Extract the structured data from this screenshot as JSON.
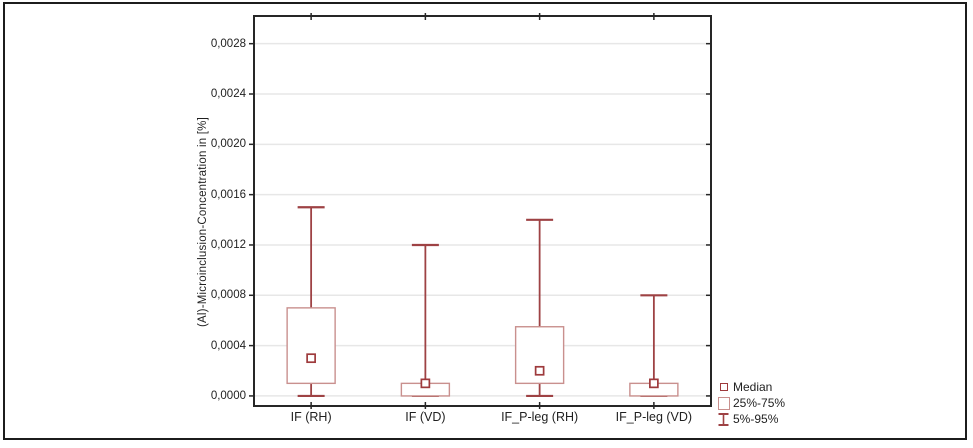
{
  "figure": {
    "background": "#ffffff",
    "frame_border_color": "#1c1c1c"
  },
  "chart_data": {
    "type": "boxplot",
    "title": "",
    "xlabel": "",
    "ylabel": "(Al)-Microinclusion-Concentration in [%]",
    "categories": [
      "IF (RH)",
      "IF (VD)",
      "IF_P-leg (RH)",
      "IF_P-leg (VD)"
    ],
    "series": [
      {
        "category": "IF (RH)",
        "p5": 0.0,
        "q1": 0.0001,
        "median": 0.0003,
        "q3": 0.0007,
        "p95": 0.0015
      },
      {
        "category": "IF (VD)",
        "p5": 0.0,
        "q1": 0.0,
        "median": 0.0001,
        "q3": 0.0001,
        "p95": 0.0012
      },
      {
        "category": "IF_P-leg (RH)",
        "p5": 0.0,
        "q1": 0.0001,
        "median": 0.0002,
        "q3": 0.00055,
        "p95": 0.0014
      },
      {
        "category": "IF_P-leg (VD)",
        "p5": 0.0,
        "q1": 0.0,
        "median": 0.0001,
        "q3": 0.0001,
        "p95": 0.0008
      }
    ],
    "yticks": [
      0.0,
      0.0004,
      0.0008,
      0.0012,
      0.0016,
      0.002,
      0.0024,
      0.0028
    ],
    "ytick_labels": [
      "0,0000",
      "0,0004",
      "0,0008",
      "0,0012",
      "0,0016",
      "0,0020",
      "0,0024",
      "0,0028"
    ],
    "ylim": [
      -8e-05,
      0.00302
    ],
    "grid": "horizontal",
    "legend_position": "bottom-right",
    "legend": [
      {
        "label": "Median",
        "marker": "median-square"
      },
      {
        "label": "25%-75%",
        "marker": "iqr-box"
      },
      {
        "label": "5%-95%",
        "marker": "whisker-ibeam"
      }
    ],
    "colors": {
      "box_outline": "#c9908e",
      "whisker": "#9e4244",
      "median_marker": "#9e3a3c",
      "gridline": "#e7e7e7",
      "plot_border": "#262626",
      "text": "#1f1f1f",
      "fill": "#ffffff"
    }
  }
}
